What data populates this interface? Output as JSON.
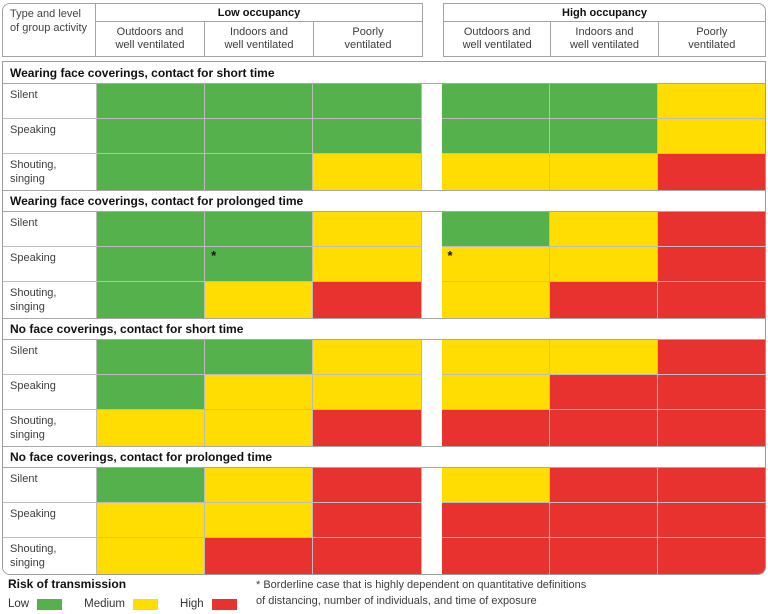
{
  "chart_data": {
    "type": "heatmap",
    "corner_header": "Type and level\nof group activity",
    "column_groups": [
      {
        "label": "Low occupancy",
        "columns": [
          "Outdoors and\nwell ventilated",
          "Indoors and\nwell ventilated",
          "Poorly\nventilated"
        ]
      },
      {
        "label": "High occupancy",
        "columns": [
          "Outdoors and\nwell ventilated",
          "Indoors and\nwell ventilated",
          "Poorly\nventilated"
        ]
      }
    ],
    "colors": {
      "low": "#54B14B",
      "medium": "#FFDD00",
      "high": "#E73230"
    },
    "cell_note_marker": "*",
    "sections": [
      {
        "title": "Wearing face coverings, contact for short time",
        "rows": [
          {
            "label": "Silent",
            "cells": [
              "low",
              "low",
              "low",
              "low",
              "low",
              "medium"
            ]
          },
          {
            "label": "Speaking",
            "cells": [
              "low",
              "low",
              "low",
              "low",
              "low",
              "medium"
            ]
          },
          {
            "label": "Shouting,\nsinging",
            "cells": [
              "low",
              "low",
              "medium",
              "medium",
              "medium",
              "high"
            ]
          }
        ]
      },
      {
        "title": "Wearing face coverings, contact for prolonged time",
        "rows": [
          {
            "label": "Silent",
            "cells": [
              "low",
              "low",
              "medium",
              "low",
              "medium",
              "high"
            ]
          },
          {
            "label": "Speaking",
            "cells": [
              "low",
              "low*",
              "medium",
              "medium*",
              "medium",
              "high"
            ]
          },
          {
            "label": "Shouting,\nsinging",
            "cells": [
              "low",
              "medium",
              "high",
              "medium",
              "high",
              "high"
            ]
          }
        ]
      },
      {
        "title": "No face coverings, contact for short time",
        "rows": [
          {
            "label": "Silent",
            "cells": [
              "low",
              "low",
              "medium",
              "medium",
              "medium",
              "high"
            ]
          },
          {
            "label": "Speaking",
            "cells": [
              "low",
              "medium",
              "medium",
              "medium",
              "high",
              "high"
            ]
          },
          {
            "label": "Shouting,\nsinging",
            "cells": [
              "medium",
              "medium",
              "high",
              "high",
              "high",
              "high"
            ]
          }
        ]
      },
      {
        "title": "No face coverings, contact for prolonged time",
        "rows": [
          {
            "label": "Silent",
            "cells": [
              "low",
              "medium",
              "high",
              "medium",
              "high",
              "high"
            ]
          },
          {
            "label": "Speaking",
            "cells": [
              "medium",
              "medium",
              "high",
              "high",
              "high",
              "high"
            ]
          },
          {
            "label": "Shouting,\nsinging",
            "cells": [
              "medium",
              "high",
              "high",
              "high",
              "high",
              "high"
            ]
          }
        ]
      }
    ]
  },
  "legend": {
    "title": "Risk of transmission",
    "items": [
      {
        "label": "Low",
        "color": "#54B14B"
      },
      {
        "label": "Medium",
        "color": "#FFDD00"
      },
      {
        "label": "High",
        "color": "#E73230"
      }
    ]
  },
  "footnote": "* Borderline case that is highly dependent on quantitative definitions\nof distancing, number of individuals, and time of exposure"
}
